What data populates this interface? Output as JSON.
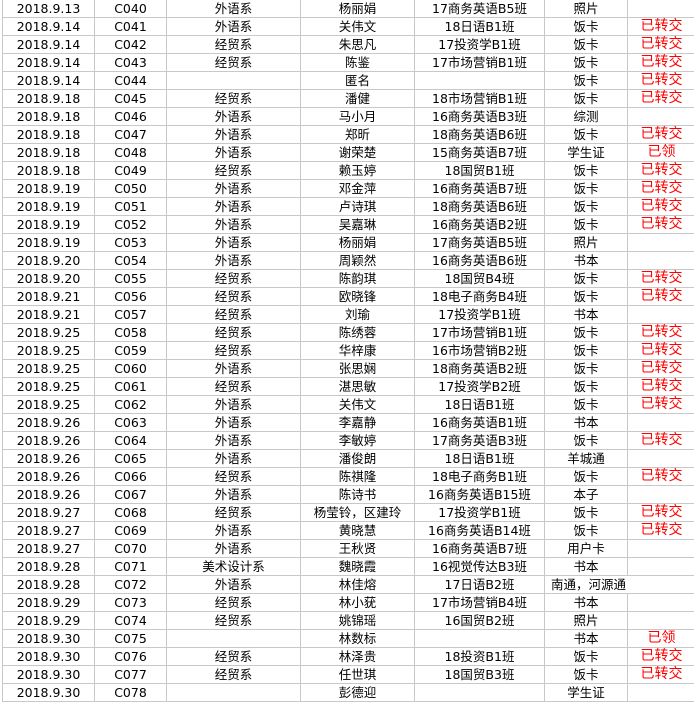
{
  "colors": {
    "status": "#ff0000",
    "grid": "#c8c8c8"
  },
  "rows": [
    [
      "2018.9.13",
      "C040",
      "外语系",
      "杨丽娟",
      "17商务英语B5班",
      "照片",
      ""
    ],
    [
      "2018.9.14",
      "C041",
      "外语系",
      "关伟文",
      "18日语B1班",
      "饭卡",
      "已转交"
    ],
    [
      "2018.9.14",
      "C042",
      "经贸系",
      "朱思凡",
      "17投资学B1班",
      "饭卡",
      "已转交"
    ],
    [
      "2018.9.14",
      "C043",
      "经贸系",
      "陈鉴",
      "17市场营销B1班",
      "饭卡",
      "已转交"
    ],
    [
      "2018.9.14",
      "C044",
      "",
      "匿名",
      "",
      "饭卡",
      "已转交"
    ],
    [
      "2018.9.18",
      "C045",
      "经贸系",
      "潘健",
      "18市场营销B1班",
      "饭卡",
      "已转交"
    ],
    [
      "2018.9.18",
      "C046",
      "外语系",
      "马小月",
      "16商务英语B3班",
      "综测",
      ""
    ],
    [
      "2018.9.18",
      "C047",
      "外语系",
      "郑昕",
      "18商务英语B6班",
      "饭卡",
      "已转交"
    ],
    [
      "2018.9.18",
      "C048",
      "外语系",
      "谢荣楚",
      "15商务英语B7班",
      "学生证",
      "已领"
    ],
    [
      "2018.9.18",
      "C049",
      "经贸系",
      "赖玉婷",
      "18国贸B1班",
      "饭卡",
      "已转交"
    ],
    [
      "2018.9.19",
      "C050",
      "外语系",
      "邓金萍",
      "16商务英语B7班",
      "饭卡",
      "已转交"
    ],
    [
      "2018.9.19",
      "C051",
      "外语系",
      "卢诗琪",
      "18商务英语B6班",
      "饭卡",
      "已转交"
    ],
    [
      "2018.9.19",
      "C052",
      "外语系",
      "吴嘉琳",
      "16商务英语B2班",
      "饭卡",
      "已转交"
    ],
    [
      "2018.9.19",
      "C053",
      "外语系",
      "杨丽娟",
      "17商务英语B5班",
      "照片",
      ""
    ],
    [
      "2018.9.20",
      "C054",
      "外语系",
      "周颖然",
      "16商务英语B6班",
      "书本",
      ""
    ],
    [
      "2018.9.20",
      "C055",
      "经贸系",
      "陈韵琪",
      "18国贸B4班",
      "饭卡",
      "已转交"
    ],
    [
      "2018.9.21",
      "C056",
      "经贸系",
      "欧晓锋",
      "18电子商务B4班",
      "饭卡",
      "已转交"
    ],
    [
      "2018.9.21",
      "C057",
      "经贸系",
      "刘瑜",
      "17投资学B1班",
      "书本",
      ""
    ],
    [
      "2018.9.25",
      "C058",
      "经贸系",
      "陈绣蓉",
      "17市场营销B1班",
      "饭卡",
      "已转交"
    ],
    [
      "2018.9.25",
      "C059",
      "经贸系",
      "华梓康",
      "16市场营销B2班",
      "饭卡",
      "已转交"
    ],
    [
      "2018.9.25",
      "C060",
      "外语系",
      "张思娴",
      "18商务英语B2班",
      "饭卡",
      "已转交"
    ],
    [
      "2018.9.25",
      "C061",
      "经贸系",
      "湛思敏",
      "17投资学B2班",
      "饭卡",
      "已转交"
    ],
    [
      "2018.9.25",
      "C062",
      "外语系",
      "关伟文",
      "18日语B1班",
      "饭卡",
      "已转交"
    ],
    [
      "2018.9.26",
      "C063",
      "外语系",
      "李嘉静",
      "16商务英语B1班",
      "书本",
      ""
    ],
    [
      "2018.9.26",
      "C064",
      "外语系",
      "李敏婷",
      "17商务英语B3班",
      "饭卡",
      "已转交"
    ],
    [
      "2018.9.26",
      "C065",
      "外语系",
      "潘俊朗",
      "18日语B1班",
      "羊城通",
      ""
    ],
    [
      "2018.9.26",
      "C066",
      "经贸系",
      "陈祺隆",
      "18电子商务B1班",
      "饭卡",
      "已转交"
    ],
    [
      "2018.9.26",
      "C067",
      "外语系",
      "陈诗书",
      "16商务英语B15班",
      "本子",
      ""
    ],
    [
      "2018.9.27",
      "C068",
      "经贸系",
      "杨莹铃，区建玲",
      "17投资学B1班",
      "饭卡",
      "已转交"
    ],
    [
      "2018.9.27",
      "C069",
      "外语系",
      "黄晓慧",
      "16商务英语B14班",
      "饭卡",
      "已转交"
    ],
    [
      "2018.9.27",
      "C070",
      "外语系",
      "王秋贤",
      "16商务英语B7班",
      "用户卡",
      ""
    ],
    [
      "2018.9.28",
      "C071",
      "美术设计系",
      "魏晓霞",
      "16视觉传达B3班",
      "书本",
      ""
    ],
    [
      "2018.9.28",
      "C072",
      "外语系",
      "林佳熔",
      "17日语B2班",
      "南通，河源通",
      ""
    ],
    [
      "2018.9.29",
      "C073",
      "经贸系",
      "林小莸",
      "17市场营销B4班",
      "书本",
      ""
    ],
    [
      "2018.9.29",
      "C074",
      "经贸系",
      "姚锦瑶",
      "16国贸B2班",
      "照片",
      ""
    ],
    [
      "2018.9.30",
      "C075",
      "",
      "林数标",
      "",
      "书本",
      "已领"
    ],
    [
      "2018.9.30",
      "C076",
      "经贸系",
      "林泽贵",
      "18投资B1班",
      "饭卡",
      "已转交"
    ],
    [
      "2018.9.30",
      "C077",
      "经贸系",
      "任世琪",
      "18国贸B3班",
      "饭卡",
      "已转交"
    ],
    [
      "2018.9.30",
      "C078",
      "",
      "彭德迎",
      "",
      "学生证",
      ""
    ]
  ]
}
